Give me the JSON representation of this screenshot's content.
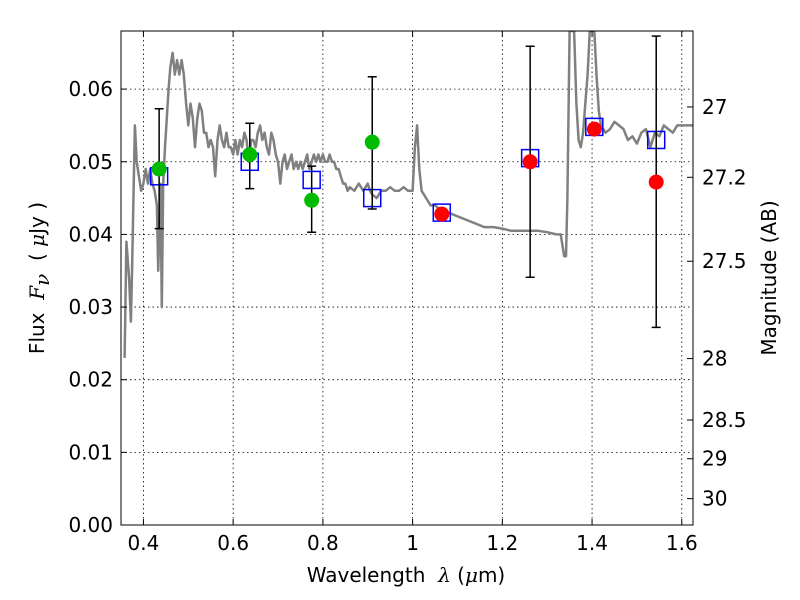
{
  "chart_data": {
    "type": "scatter",
    "xlabel_prefix": "Wavelength  ",
    "xlabel_symbol": "λ",
    "xlabel_unit_open": " (",
    "xlabel_unit_mu": "μ",
    "xlabel_unit_rest": "m)",
    "ylabel_prefix": "Flux  ",
    "ylabel_symbol": "F",
    "ylabel_subscript": "ν",
    "ylabel_unit_open": "  ( ",
    "ylabel_unit_mu": "μ",
    "ylabel_unit_rest": "Jy )",
    "y2label": "Magnitude (AB)",
    "xlim": [
      0.35,
      1.625
    ],
    "ylim": [
      0.0,
      0.068
    ],
    "grid": true,
    "x_ticks": [
      0.4,
      0.6,
      0.8,
      1.0,
      1.2,
      1.4,
      1.6
    ],
    "x_tick_labels": [
      "0.4",
      "0.6",
      "0.8",
      "1",
      "1.2",
      "1.4",
      "1.6"
    ],
    "y_ticks": [
      0.0,
      0.01,
      0.02,
      0.03,
      0.04,
      0.05,
      0.06
    ],
    "y_tick_labels": [
      "0.00",
      "0.01",
      "0.02",
      "0.03",
      "0.04",
      "0.05",
      "0.06"
    ],
    "mag_ticks": [
      27,
      27.2,
      27.5,
      28,
      28.5,
      29,
      30
    ],
    "mag_tick_labels": [
      "27",
      "27.2",
      "27.5",
      "28",
      "28.5",
      "29",
      "30"
    ],
    "colors": {
      "model": "#808080",
      "detected": "#00bb00",
      "upper": "#ff0000",
      "model_flux": "#0000ff",
      "errorbar": "#000000"
    },
    "series": [
      {
        "marker": "line",
        "points": [
          [
            0.358,
            0.023
          ],
          [
            0.362,
            0.039
          ],
          [
            0.368,
            0.034
          ],
          [
            0.372,
            0.028
          ],
          [
            0.375,
            0.036
          ],
          [
            0.378,
            0.046
          ],
          [
            0.381,
            0.055
          ],
          [
            0.385,
            0.05
          ],
          [
            0.39,
            0.048
          ],
          [
            0.395,
            0.046
          ],
          [
            0.4,
            0.047
          ],
          [
            0.405,
            0.049
          ],
          [
            0.41,
            0.047
          ],
          [
            0.415,
            0.049
          ],
          [
            0.42,
            0.047
          ],
          [
            0.425,
            0.046
          ],
          [
            0.43,
            0.044
          ],
          [
            0.433,
            0.035
          ],
          [
            0.436,
            0.041
          ],
          [
            0.438,
            0.047
          ],
          [
            0.441,
            0.03
          ],
          [
            0.444,
            0.047
          ],
          [
            0.448,
            0.052
          ],
          [
            0.452,
            0.056
          ],
          [
            0.456,
            0.06
          ],
          [
            0.46,
            0.063
          ],
          [
            0.465,
            0.065
          ],
          [
            0.47,
            0.062
          ],
          [
            0.475,
            0.064
          ],
          [
            0.48,
            0.062
          ],
          [
            0.485,
            0.064
          ],
          [
            0.49,
            0.062
          ],
          [
            0.495,
            0.058
          ],
          [
            0.5,
            0.055
          ],
          [
            0.505,
            0.058
          ],
          [
            0.51,
            0.056
          ],
          [
            0.515,
            0.052
          ],
          [
            0.52,
            0.056
          ],
          [
            0.525,
            0.058
          ],
          [
            0.53,
            0.057
          ],
          [
            0.535,
            0.054
          ],
          [
            0.54,
            0.054
          ],
          [
            0.545,
            0.052
          ],
          [
            0.55,
            0.053
          ],
          [
            0.555,
            0.052
          ],
          [
            0.56,
            0.048
          ],
          [
            0.565,
            0.053
          ],
          [
            0.57,
            0.055
          ],
          [
            0.575,
            0.053
          ],
          [
            0.58,
            0.052
          ],
          [
            0.585,
            0.054
          ],
          [
            0.59,
            0.052
          ],
          [
            0.595,
            0.052
          ],
          [
            0.6,
            0.051
          ],
          [
            0.605,
            0.053
          ],
          [
            0.61,
            0.051
          ],
          [
            0.615,
            0.053
          ],
          [
            0.62,
            0.052
          ],
          [
            0.625,
            0.054
          ],
          [
            0.63,
            0.053
          ],
          [
            0.635,
            0.05
          ],
          [
            0.64,
            0.053
          ],
          [
            0.645,
            0.053
          ],
          [
            0.65,
            0.052
          ],
          [
            0.655,
            0.054
          ],
          [
            0.66,
            0.055
          ],
          [
            0.665,
            0.053
          ],
          [
            0.67,
            0.054
          ],
          [
            0.675,
            0.052
          ],
          [
            0.68,
            0.051
          ],
          [
            0.685,
            0.054
          ],
          [
            0.69,
            0.053
          ],
          [
            0.695,
            0.051
          ],
          [
            0.7,
            0.05
          ],
          [
            0.705,
            0.047
          ],
          [
            0.71,
            0.05
          ],
          [
            0.715,
            0.051
          ],
          [
            0.72,
            0.049
          ],
          [
            0.725,
            0.05
          ],
          [
            0.73,
            0.051
          ],
          [
            0.735,
            0.049
          ],
          [
            0.74,
            0.05
          ],
          [
            0.745,
            0.049
          ],
          [
            0.75,
            0.05
          ],
          [
            0.755,
            0.049
          ],
          [
            0.76,
            0.05
          ],
          [
            0.765,
            0.051
          ],
          [
            0.77,
            0.049
          ],
          [
            0.775,
            0.05
          ],
          [
            0.78,
            0.051
          ],
          [
            0.785,
            0.05
          ],
          [
            0.79,
            0.051
          ],
          [
            0.795,
            0.05
          ],
          [
            0.8,
            0.051
          ],
          [
            0.805,
            0.05
          ],
          [
            0.81,
            0.05
          ],
          [
            0.815,
            0.051
          ],
          [
            0.82,
            0.05
          ],
          [
            0.825,
            0.05
          ],
          [
            0.83,
            0.049
          ],
          [
            0.835,
            0.049
          ],
          [
            0.84,
            0.048
          ],
          [
            0.845,
            0.047
          ],
          [
            0.85,
            0.047
          ],
          [
            0.855,
            0.046
          ],
          [
            0.86,
            0.0465
          ],
          [
            0.87,
            0.046
          ],
          [
            0.88,
            0.047
          ],
          [
            0.89,
            0.046
          ],
          [
            0.9,
            0.047
          ],
          [
            0.905,
            0.046
          ],
          [
            0.91,
            0.0455
          ],
          [
            0.92,
            0.045
          ],
          [
            0.93,
            0.046
          ],
          [
            0.94,
            0.046
          ],
          [
            0.95,
            0.0465
          ],
          [
            0.96,
            0.046
          ],
          [
            0.97,
            0.046
          ],
          [
            0.98,
            0.0465
          ],
          [
            0.99,
            0.046
          ],
          [
            1.0,
            0.046
          ],
          [
            1.005,
            0.052
          ],
          [
            1.01,
            0.055
          ],
          [
            1.015,
            0.049
          ],
          [
            1.02,
            0.046
          ],
          [
            1.03,
            0.045
          ],
          [
            1.04,
            0.044
          ],
          [
            1.05,
            0.044
          ],
          [
            1.06,
            0.0435
          ],
          [
            1.08,
            0.043
          ],
          [
            1.1,
            0.0425
          ],
          [
            1.12,
            0.042
          ],
          [
            1.14,
            0.0415
          ],
          [
            1.16,
            0.041
          ],
          [
            1.18,
            0.041
          ],
          [
            1.2,
            0.0408
          ],
          [
            1.22,
            0.0405
          ],
          [
            1.24,
            0.0405
          ],
          [
            1.26,
            0.0405
          ],
          [
            1.28,
            0.0405
          ],
          [
            1.3,
            0.0403
          ],
          [
            1.32,
            0.04
          ],
          [
            1.33,
            0.04
          ],
          [
            1.338,
            0.037
          ],
          [
            1.342,
            0.037
          ],
          [
            1.345,
            0.045
          ],
          [
            1.35,
            0.068
          ],
          [
            1.36,
            0.068
          ],
          [
            1.365,
            0.058
          ],
          [
            1.37,
            0.053
          ],
          [
            1.375,
            0.052
          ],
          [
            1.38,
            0.054
          ],
          [
            1.385,
            0.058
          ],
          [
            1.39,
            0.062
          ],
          [
            1.395,
            0.068
          ],
          [
            1.405,
            0.068
          ],
          [
            1.41,
            0.062
          ],
          [
            1.415,
            0.057
          ],
          [
            1.42,
            0.055
          ],
          [
            1.43,
            0.054
          ],
          [
            1.44,
            0.0545
          ],
          [
            1.45,
            0.0555
          ],
          [
            1.46,
            0.055
          ],
          [
            1.47,
            0.0545
          ],
          [
            1.48,
            0.053
          ],
          [
            1.49,
            0.0535
          ],
          [
            1.5,
            0.0525
          ],
          [
            1.51,
            0.054
          ],
          [
            1.52,
            0.0545
          ],
          [
            1.53,
            0.052
          ],
          [
            1.54,
            0.054
          ],
          [
            1.55,
            0.0535
          ],
          [
            1.56,
            0.055
          ],
          [
            1.57,
            0.0545
          ],
          [
            1.58,
            0.054
          ],
          [
            1.59,
            0.055
          ],
          [
            1.6,
            0.055
          ],
          [
            1.61,
            0.055
          ],
          [
            1.625,
            0.055
          ]
        ]
      },
      {
        "marker": "square",
        "points": [
          [
            0.435,
            0.048
          ],
          [
            0.637,
            0.05
          ],
          [
            0.775,
            0.0475
          ],
          [
            0.91,
            0.045
          ],
          [
            1.065,
            0.043
          ],
          [
            1.262,
            0.0505
          ],
          [
            1.405,
            0.0548
          ],
          [
            1.543,
            0.053
          ]
        ]
      },
      {
        "marker": "circle",
        "points": [
          [
            0.435,
            0.049
          ],
          [
            0.637,
            0.051
          ],
          [
            0.775,
            0.0447
          ],
          [
            0.91,
            0.0527
          ]
        ]
      },
      {
        "marker": "circle",
        "points": [
          [
            1.065,
            0.0428
          ],
          [
            1.262,
            0.05
          ],
          [
            1.405,
            0.0545
          ],
          [
            1.543,
            0.0472
          ]
        ]
      },
      {
        "marker": "errorbar",
        "points": [
          [
            0.435,
            0.0408,
            0.0573
          ],
          [
            0.637,
            0.0463,
            0.0553
          ],
          [
            0.775,
            0.0403,
            0.0494
          ],
          [
            0.91,
            0.0435,
            0.0617
          ],
          [
            1.262,
            0.0341,
            0.0659
          ],
          [
            1.543,
            0.0272,
            0.0673
          ]
        ]
      }
    ]
  }
}
